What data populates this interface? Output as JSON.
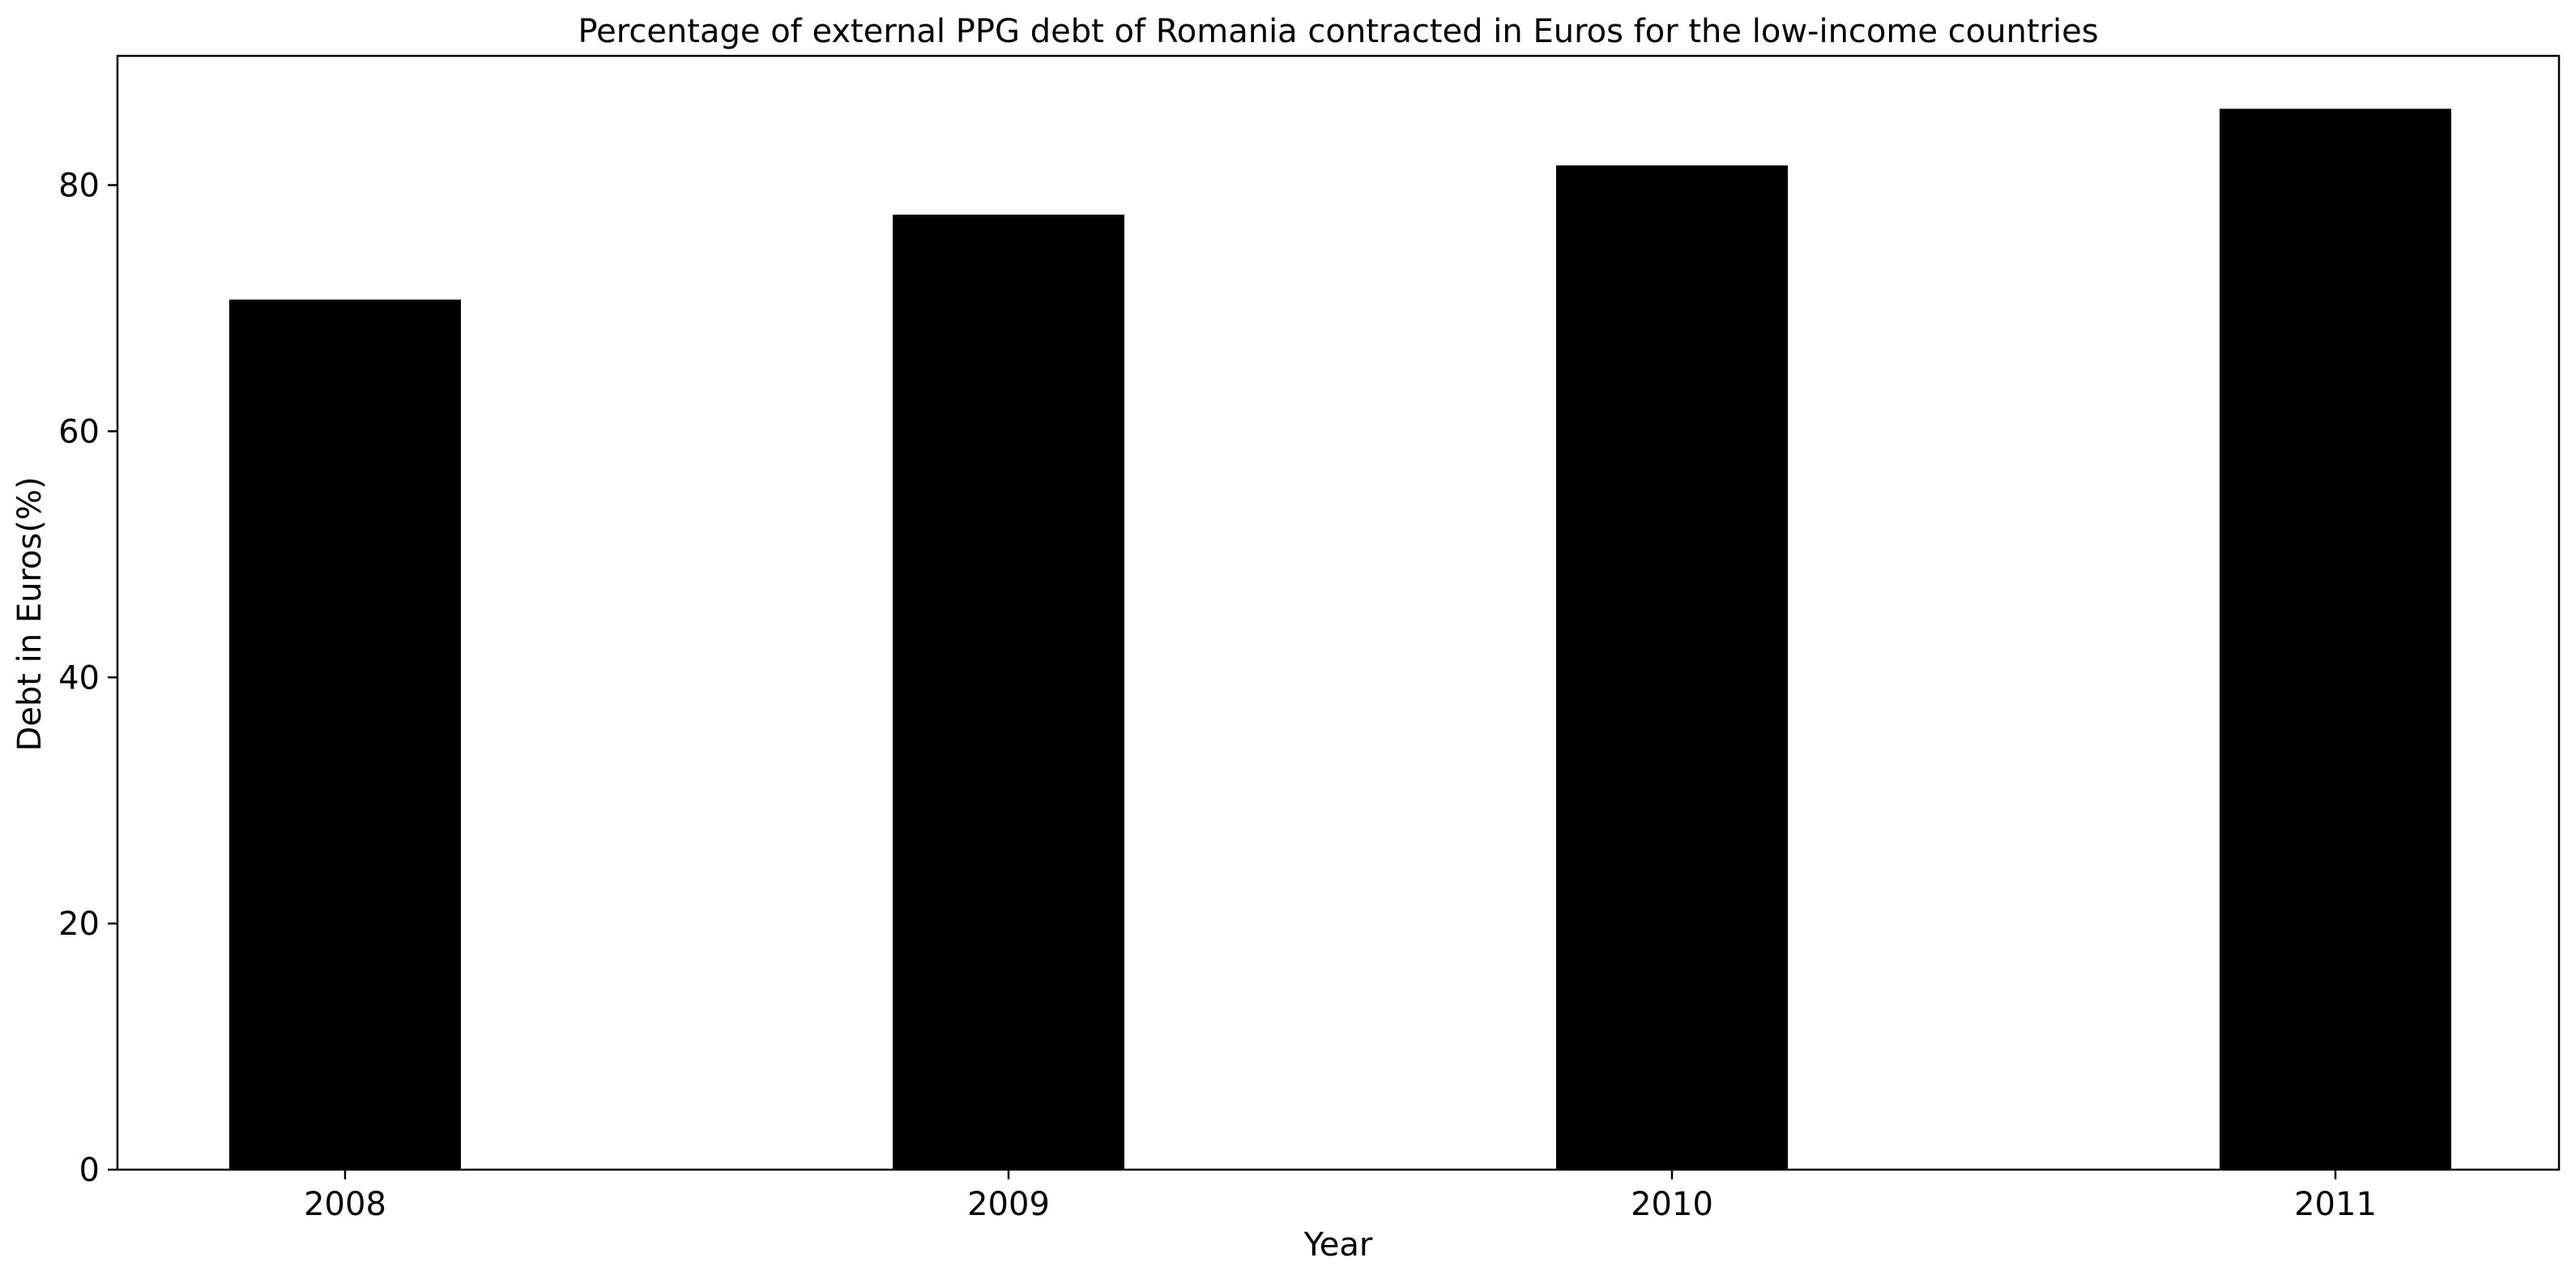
{
  "chart_data": {
    "type": "bar",
    "title": "Percentage of external PPG debt of Romania contracted in Euros for the low-income countries",
    "xlabel": "Year",
    "ylabel": "Debt in Euros(%)",
    "categories": [
      "2008",
      "2009",
      "2010",
      "2011"
    ],
    "values": [
      70.7,
      77.6,
      81.6,
      86.2
    ],
    "ylim": [
      0,
      90.5
    ],
    "yticks": [
      0,
      20,
      40,
      60,
      80
    ],
    "bar_color": "#000000",
    "grid": false,
    "legend": "none"
  }
}
